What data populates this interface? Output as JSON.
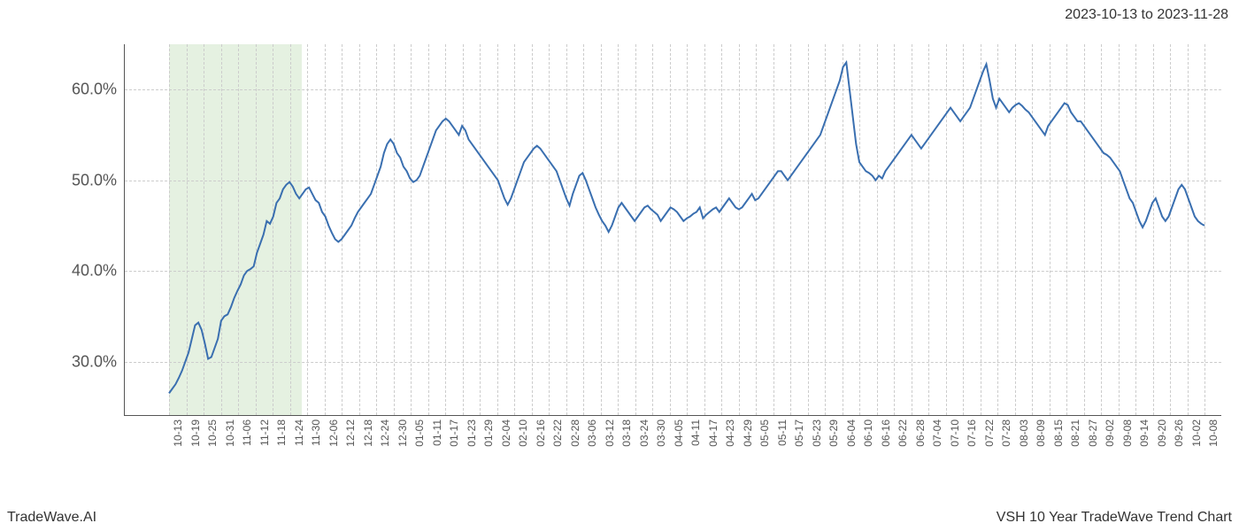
{
  "header": {
    "date_range": "2023-10-13 to 2023-11-28"
  },
  "footer": {
    "brand": "TradeWave.AI",
    "title": "VSH 10 Year TradeWave Trend Chart"
  },
  "chart": {
    "type": "line",
    "background_color": "#ffffff",
    "grid_color": "#cccccc",
    "axis_color": "#555555",
    "line_color": "#3a6fb0",
    "line_width": 2,
    "highlight": {
      "color": "#b4d7aa",
      "opacity": 0.35,
      "x_start": "10-13",
      "x_end": "11-28"
    },
    "y_axis": {
      "min": 24,
      "max": 65,
      "ticks": [
        30,
        40,
        50,
        60
      ],
      "tick_labels": [
        "30.0%",
        "40.0%",
        "50.0%",
        "60.0%"
      ],
      "label_fontsize": 18,
      "label_color": "#555555"
    },
    "x_axis": {
      "ticks": [
        "10-13",
        "10-19",
        "10-25",
        "10-31",
        "11-06",
        "11-12",
        "11-18",
        "11-24",
        "11-30",
        "12-06",
        "12-12",
        "12-18",
        "12-24",
        "12-30",
        "01-05",
        "01-11",
        "01-17",
        "01-23",
        "01-29",
        "02-04",
        "02-10",
        "02-16",
        "02-22",
        "02-28",
        "03-06",
        "03-12",
        "03-18",
        "03-24",
        "03-30",
        "04-05",
        "04-11",
        "04-17",
        "04-23",
        "04-29",
        "05-05",
        "05-11",
        "05-17",
        "05-23",
        "05-29",
        "06-04",
        "06-10",
        "06-16",
        "06-22",
        "06-28",
        "07-04",
        "07-10",
        "07-16",
        "07-22",
        "07-28",
        "08-03",
        "08-09",
        "08-15",
        "08-21",
        "08-27",
        "09-02",
        "09-08",
        "09-14",
        "09-20",
        "09-26",
        "10-02",
        "10-08"
      ],
      "label_fontsize": 12,
      "label_color": "#555555",
      "rotation": -90
    },
    "series": {
      "name": "VSH",
      "values": [
        26.5,
        27,
        27.5,
        28.2,
        29,
        30,
        31,
        32.5,
        34,
        34.3,
        33.5,
        32,
        30.3,
        30.5,
        31.5,
        32.5,
        34.5,
        35,
        35.2,
        36,
        37,
        37.8,
        38.5,
        39.5,
        40,
        40.2,
        40.5,
        42,
        43,
        44,
        45.5,
        45.2,
        46,
        47.5,
        48,
        49,
        49.5,
        49.8,
        49.3,
        48.5,
        48,
        48.5,
        49,
        49.2,
        48.5,
        47.8,
        47.5,
        46.5,
        46,
        45,
        44.2,
        43.5,
        43.2,
        43.5,
        44,
        44.5,
        45,
        45.8,
        46.5,
        47,
        47.5,
        48,
        48.5,
        49.5,
        50.5,
        51.5,
        53,
        54,
        54.5,
        54,
        53,
        52.5,
        51.5,
        51,
        50.2,
        49.8,
        50,
        50.5,
        51.5,
        52.5,
        53.5,
        54.5,
        55.5,
        56,
        56.5,
        56.8,
        56.5,
        56,
        55.5,
        55,
        56,
        55.5,
        54.5,
        54,
        53.5,
        53,
        52.5,
        52,
        51.5,
        51,
        50.5,
        50,
        49,
        48,
        47.3,
        48,
        49,
        50,
        51,
        52,
        52.5,
        53,
        53.5,
        53.8,
        53.5,
        53,
        52.5,
        52,
        51.5,
        51,
        50,
        49,
        48,
        47.2,
        48.5,
        49.5,
        50.5,
        50.8,
        50,
        49,
        48,
        47,
        46.2,
        45.5,
        45,
        44.3,
        45,
        46,
        47,
        47.5,
        47,
        46.5,
        46,
        45.5,
        46,
        46.5,
        47,
        47.2,
        46.8,
        46.5,
        46.2,
        45.5,
        46,
        46.5,
        47,
        46.8,
        46.5,
        46,
        45.5,
        45.8,
        46,
        46.3,
        46.5,
        47,
        45.8,
        46.2,
        46.5,
        46.8,
        47,
        46.5,
        47,
        47.5,
        48,
        47.5,
        47,
        46.8,
        47,
        47.5,
        48,
        48.5,
        47.8,
        48,
        48.5,
        49,
        49.5,
        50,
        50.5,
        51,
        51,
        50.5,
        50,
        50.5,
        51,
        51.5,
        52,
        52.5,
        53,
        53.5,
        54,
        54.5,
        55,
        56,
        57,
        58,
        59,
        60,
        61,
        62.5,
        63,
        60,
        57,
        54,
        52,
        51.5,
        51,
        50.8,
        50.5,
        50,
        50.5,
        50.2,
        51,
        51.5,
        52,
        52.5,
        53,
        53.5,
        54,
        54.5,
        55,
        54.5,
        54,
        53.5,
        54,
        54.5,
        55,
        55.5,
        56,
        56.5,
        57,
        57.5,
        58,
        57.5,
        57,
        56.5,
        57,
        57.5,
        58,
        59,
        60,
        61,
        62,
        62.8,
        61,
        59,
        58,
        59,
        58.5,
        58,
        57.5,
        58,
        58.3,
        58.5,
        58.2,
        57.8,
        57.5,
        57,
        56.5,
        56,
        55.5,
        55,
        56,
        56.5,
        57,
        57.5,
        58,
        58.5,
        58.3,
        57.5,
        57,
        56.5,
        56.5,
        56,
        55.5,
        55,
        54.5,
        54,
        53.5,
        53,
        52.8,
        52.5,
        52,
        51.5,
        51,
        50,
        49,
        48,
        47.5,
        46.5,
        45.5,
        44.8,
        45.5,
        46.5,
        47.5,
        48,
        47,
        46,
        45.5,
        46,
        47,
        48,
        49,
        49.5,
        49,
        48,
        47,
        46,
        45.5,
        45.2,
        45
      ]
    }
  }
}
